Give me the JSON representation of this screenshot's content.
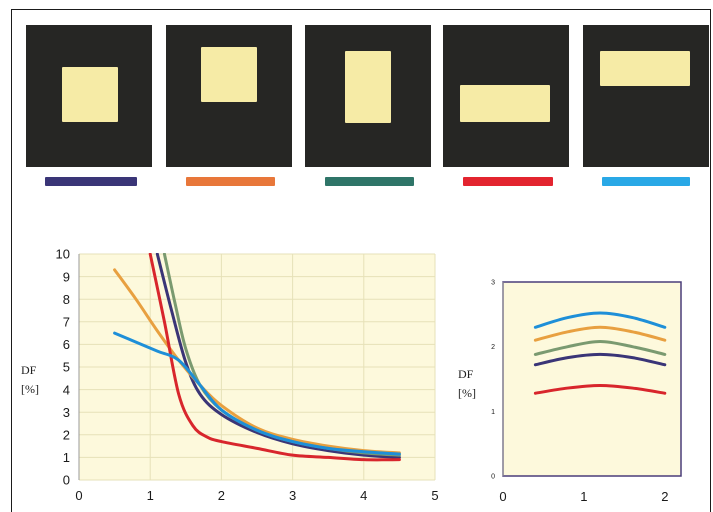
{
  "legend": {
    "configurations": [
      {
        "pane": "center",
        "color": "#3a3577"
      },
      {
        "pane": "top",
        "color": "#e8773a"
      },
      {
        "pane": "tall-center",
        "color": "#2f7568"
      },
      {
        "pane": "wide-bottom",
        "color": "#e3242f"
      },
      {
        "pane": "wide-top",
        "color": "#29a8e6"
      }
    ]
  },
  "chart_data": [
    {
      "type": "line",
      "ylabel_line1": "DF",
      "ylabel_line2": "[%]",
      "xlim": [
        0,
        5
      ],
      "ylim": [
        0,
        10
      ],
      "xticks": [
        "0",
        "1",
        "2",
        "3",
        "4",
        "5"
      ],
      "yticks": [
        "0",
        "1",
        "2",
        "3",
        "4",
        "5",
        "6",
        "7",
        "8",
        "9",
        "10"
      ],
      "grid": true,
      "series": [
        {
          "color": "#3a3577",
          "x": [
            1.1,
            1.3,
            1.5,
            1.7,
            2.0,
            2.5,
            3.0,
            3.5,
            4.0,
            4.5
          ],
          "y": [
            10,
            7.5,
            5.2,
            3.8,
            2.9,
            2.1,
            1.6,
            1.3,
            1.1,
            1.0
          ]
        },
        {
          "color": "#e8a040",
          "x": [
            0.5,
            0.8,
            1.1,
            1.4,
            1.7,
            2.0,
            2.5,
            3.0,
            3.5,
            4.0,
            4.5
          ],
          "y": [
            9.3,
            8.0,
            6.6,
            5.3,
            4.2,
            3.3,
            2.3,
            1.8,
            1.5,
            1.3,
            1.2
          ]
        },
        {
          "color": "#7a9a70",
          "x": [
            1.2,
            1.35,
            1.5,
            1.7,
            2.0,
            2.5,
            3.0,
            3.5,
            4.0,
            4.5
          ],
          "y": [
            10,
            7.8,
            5.8,
            4.2,
            3.1,
            2.2,
            1.7,
            1.4,
            1.2,
            1.1
          ]
        },
        {
          "color": "#d8262c",
          "x": [
            1.0,
            1.2,
            1.4,
            1.6,
            1.8,
            2.0,
            2.5,
            3.0,
            3.5,
            4.0,
            4.5
          ],
          "y": [
            10,
            7.0,
            3.8,
            2.4,
            1.9,
            1.7,
            1.4,
            1.1,
            1.0,
            0.9,
            0.9
          ]
        },
        {
          "color": "#1e8fd8",
          "x": [
            0.5,
            0.8,
            1.1,
            1.4,
            1.7,
            2.0,
            2.5,
            3.0,
            3.5,
            4.0,
            4.5
          ],
          "y": [
            6.5,
            6.1,
            5.7,
            5.3,
            4.2,
            3.1,
            2.2,
            1.7,
            1.4,
            1.25,
            1.15
          ]
        }
      ]
    },
    {
      "type": "line",
      "ylabel_line1": "DF",
      "ylabel_line2": "[%]",
      "xlim": [
        0,
        2.2
      ],
      "ylim": [
        0,
        3
      ],
      "xticks": [
        "0",
        "1",
        "2"
      ],
      "yticks": [
        "0",
        "1",
        "2",
        "3"
      ],
      "grid": false,
      "series": [
        {
          "color": "#1e8fd8",
          "x": [
            0.4,
            0.8,
            1.2,
            1.6,
            2.0
          ],
          "y": [
            2.3,
            2.45,
            2.52,
            2.45,
            2.3
          ]
        },
        {
          "color": "#e8a040",
          "x": [
            0.4,
            0.8,
            1.2,
            1.6,
            2.0
          ],
          "y": [
            2.1,
            2.23,
            2.3,
            2.23,
            2.1
          ]
        },
        {
          "color": "#7a9a70",
          "x": [
            0.4,
            0.8,
            1.2,
            1.6,
            2.0
          ],
          "y": [
            1.88,
            2.0,
            2.08,
            2.0,
            1.88
          ]
        },
        {
          "color": "#3a3577",
          "x": [
            0.4,
            0.8,
            1.2,
            1.6,
            2.0
          ],
          "y": [
            1.72,
            1.83,
            1.88,
            1.83,
            1.72
          ]
        },
        {
          "color": "#d8262c",
          "x": [
            0.4,
            0.8,
            1.2,
            1.6,
            2.0
          ],
          "y": [
            1.28,
            1.36,
            1.4,
            1.36,
            1.28
          ]
        }
      ]
    }
  ]
}
